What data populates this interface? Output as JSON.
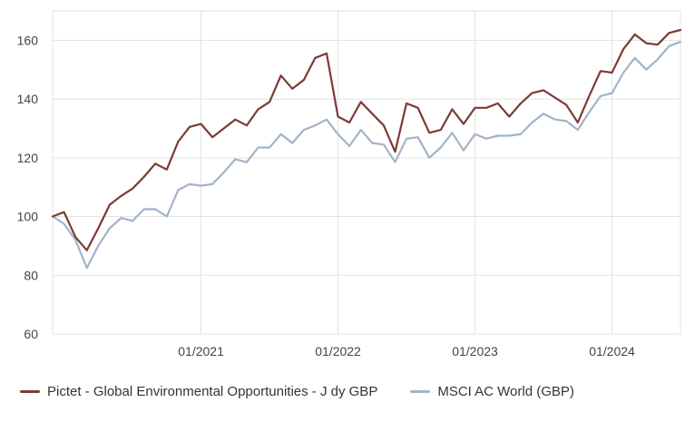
{
  "chart_data": {
    "type": "line",
    "title": "",
    "xlabel": "",
    "ylabel": "",
    "ylim": [
      60,
      170
    ],
    "yticks": [
      "60",
      "80",
      "100",
      "120",
      "140",
      "160"
    ],
    "xticks": [
      "01/2021",
      "01/2022",
      "01/2023",
      "01/2024"
    ],
    "xlim": [
      "2019-12",
      "2024-07"
    ],
    "grid": true,
    "legend_position": "bottom",
    "x": [
      "2019-12",
      "2020-01",
      "2020-02",
      "2020-03",
      "2020-04",
      "2020-05",
      "2020-06",
      "2020-07",
      "2020-08",
      "2020-09",
      "2020-10",
      "2020-11",
      "2020-12",
      "2021-01",
      "2021-02",
      "2021-03",
      "2021-04",
      "2021-05",
      "2021-06",
      "2021-07",
      "2021-08",
      "2021-09",
      "2021-10",
      "2021-11",
      "2021-12",
      "2022-01",
      "2022-02",
      "2022-03",
      "2022-04",
      "2022-05",
      "2022-06",
      "2022-07",
      "2022-08",
      "2022-09",
      "2022-10",
      "2022-11",
      "2022-12",
      "2023-01",
      "2023-02",
      "2023-03",
      "2023-04",
      "2023-05",
      "2023-06",
      "2023-07",
      "2023-08",
      "2023-09",
      "2023-10",
      "2023-11",
      "2023-12",
      "2024-01",
      "2024-02",
      "2024-03",
      "2024-04",
      "2024-05",
      "2024-06",
      "2024-07"
    ],
    "series": [
      {
        "name": "Pictet - Global Environmental Opportunities - J dy GBP",
        "color": "#7b3b35",
        "values": [
          100,
          101.5,
          93,
          88.5,
          96,
          104,
          107,
          109.5,
          113.5,
          118,
          116,
          125.5,
          130.5,
          131.5,
          127,
          130,
          133,
          131,
          136.5,
          139,
          148,
          143.5,
          146.5,
          154,
          155.5,
          134,
          132,
          139,
          135,
          131,
          122,
          138.5,
          137,
          128.5,
          129.5,
          136.5,
          131.5,
          137,
          137,
          138.5,
          134,
          138.5,
          142,
          143,
          140.5,
          138,
          132,
          141,
          149.5,
          149,
          157,
          162,
          159,
          158.5,
          162.5,
          163.5
        ]
      },
      {
        "name": "MSCI AC World (GBP)",
        "color": "#a3b3c9",
        "values": [
          100,
          97.5,
          92,
          82.5,
          90,
          96,
          99.5,
          98.5,
          102.5,
          102.5,
          100,
          109,
          111,
          110.5,
          111,
          115,
          119.5,
          118.5,
          123.5,
          123.5,
          128,
          125,
          129.5,
          131,
          133,
          128,
          124,
          129.5,
          125,
          124.5,
          118.5,
          126.5,
          127,
          120,
          123.5,
          128.5,
          122.5,
          128,
          126.5,
          127.5,
          127.5,
          128,
          132,
          135,
          133,
          132.5,
          129.5,
          135.5,
          141,
          142,
          149,
          154,
          150,
          153.5,
          158,
          159.5
        ]
      }
    ]
  }
}
